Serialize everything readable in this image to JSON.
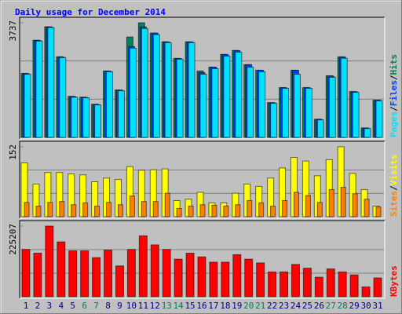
{
  "title": "Daily usage for December 2014",
  "chart_data": [
    {
      "type": "bar",
      "legend_separator": "/",
      "ylim": [
        0,
        3737
      ],
      "yticks": [
        3737
      ],
      "series": [
        {
          "name": "Hits",
          "color": "#00805c",
          "values": [
            2088,
            3170,
            3608,
            2630,
            1340,
            1314,
            1082,
            2165,
            1546,
            3273,
            3737,
            3400,
            3118,
            2577,
            3118,
            2165,
            2293,
            2706,
            2835,
            2371,
            2190,
            1134,
            1623,
            2190,
            1623,
            593,
            2010,
            2628,
            1495,
            309,
            1211
          ]
        },
        {
          "name": "Files",
          "color": "#0040ff",
          "values": [
            2080,
            3160,
            3600,
            2620,
            1330,
            1300,
            1075,
            2160,
            1540,
            2963,
            3600,
            3400,
            3110,
            2570,
            3110,
            2110,
            2290,
            2700,
            2830,
            2370,
            2190,
            1130,
            1620,
            2190,
            1620,
            590,
            2000,
            2620,
            1490,
            305,
            1210
          ]
        },
        {
          "name": "Pages",
          "color": "#00e0ff",
          "values": [
            2060,
            3140,
            3580,
            2600,
            1310,
            1290,
            1060,
            2140,
            1520,
            2910,
            3550,
            3350,
            3090,
            2550,
            3090,
            2060,
            2240,
            2650,
            2780,
            2290,
            2140,
            1110,
            1600,
            2060,
            1600,
            570,
            1960,
            2580,
            1470,
            290,
            1190
          ]
        }
      ]
    },
    {
      "type": "bar",
      "legend_separator": "/",
      "ylim": [
        0,
        152
      ],
      "yticks": [
        152
      ],
      "series": [
        {
          "name": "Visits",
          "color": "#ffff00",
          "values": [
            117,
            71,
            96,
            96,
            93,
            91,
            76,
            84,
            81,
            109,
            101,
            102,
            104,
            35,
            38,
            53,
            30,
            30,
            51,
            71,
            66,
            84,
            106,
            129,
            121,
            89,
            124,
            152,
            94,
            59,
            23
          ]
        },
        {
          "name": "Sites",
          "color": "#ff8000",
          "values": [
            31,
            23,
            31,
            33,
            26,
            30,
            23,
            31,
            26,
            45,
            33,
            33,
            51,
            18,
            23,
            26,
            25,
            23,
            26,
            35,
            30,
            23,
            35,
            53,
            46,
            31,
            59,
            64,
            50,
            38,
            21
          ]
        }
      ]
    },
    {
      "type": "bar",
      "ylim": [
        0,
        225207
      ],
      "yticks": [
        225207
      ],
      "categories": [
        "1",
        "2",
        "3",
        "4",
        "5",
        "6",
        "7",
        "8",
        "9",
        "10",
        "11",
        "12",
        "13",
        "14",
        "15",
        "16",
        "17",
        "18",
        "19",
        "20",
        "21",
        "22",
        "23",
        "24",
        "25",
        "26",
        "27",
        "28",
        "29",
        "30",
        "31"
      ],
      "category_colors": [
        "#000080",
        "#000080",
        "#000080",
        "#000080",
        "#000080",
        "#00805c",
        "#00805c",
        "#000080",
        "#000080",
        "#000080",
        "#000080",
        "#000080",
        "#00805c",
        "#00805c",
        "#000080",
        "#000080",
        "#000080",
        "#000080",
        "#000080",
        "#00805c",
        "#00805c",
        "#000080",
        "#000080",
        "#000080",
        "#000080",
        "#000080",
        "#00805c",
        "#00805c",
        "#000080",
        "#000080",
        "#000080"
      ],
      "series": [
        {
          "name": "KBytes",
          "color": "#ff0000",
          "values": [
            150950,
            138970,
            225207,
            174900,
            146160,
            146160,
            124600,
            148550,
            98240,
            150950,
            194080,
            165320,
            150950,
            119800,
            138970,
            127000,
            110220,
            110220,
            134180,
            119800,
            107820,
            79070,
            79070,
            103030,
            91050,
            62300,
            88650,
            79070,
            69480,
            31150,
            59900
          ]
        }
      ]
    }
  ]
}
